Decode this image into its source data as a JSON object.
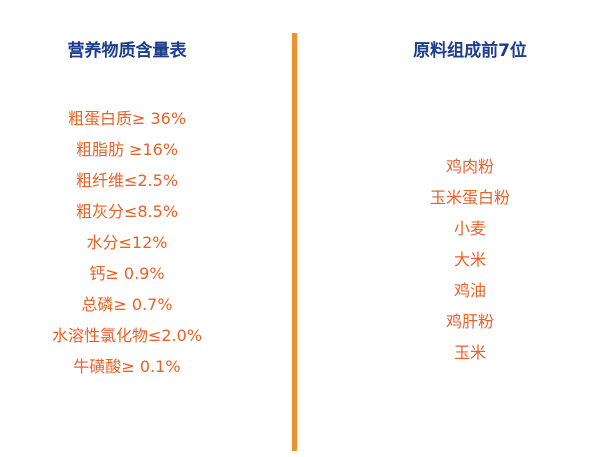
{
  "left": {
    "title": "营养物质含量表",
    "items": [
      "粗蛋白质≥ 36%",
      "粗脂肪 ≥16%",
      "粗纤维≤2.5%",
      "粗灰分≤8.5%",
      "水分≤12%",
      "钙≥ 0.9%",
      "总磷≥ 0.7%",
      "水溶性氯化物≤2.0%",
      "牛磺酸≥ 0.1%"
    ]
  },
  "right": {
    "title": "原料组成前7位",
    "items": [
      "鸡肉粉",
      "玉米蛋白粉",
      "小麦",
      "大米",
      "鸡油",
      "鸡肝粉",
      "玉米"
    ]
  },
  "colors": {
    "title": "#1c3c8c",
    "text": "#e8622a",
    "divider": "#f0902a"
  }
}
